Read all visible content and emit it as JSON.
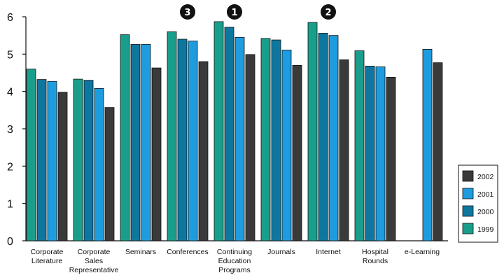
{
  "chart_data": {
    "type": "bar",
    "categories": [
      [
        "Corporate",
        "Literature"
      ],
      [
        "Corporate",
        "Sales",
        "Representative"
      ],
      [
        "Seminars"
      ],
      [
        "Conferences"
      ],
      [
        "Continuing",
        "Education",
        "Programs"
      ],
      [
        "Journals"
      ],
      [
        "Internet"
      ],
      [
        "Hospital",
        "Rounds"
      ],
      [
        "e-Learning"
      ]
    ],
    "series": [
      {
        "name": "1999",
        "color": "#1a9e8c",
        "values": [
          4.6,
          4.33,
          5.52,
          5.6,
          5.87,
          5.42,
          5.85,
          5.09,
          null
        ]
      },
      {
        "name": "2000",
        "color": "#0e77a0",
        "values": [
          4.32,
          4.3,
          5.26,
          5.4,
          5.72,
          5.38,
          5.56,
          4.68,
          null
        ]
      },
      {
        "name": "2001",
        "color": "#1e9ce0",
        "values": [
          4.27,
          4.08,
          5.26,
          5.35,
          5.45,
          5.11,
          5.5,
          4.66,
          5.13
        ]
      },
      {
        "name": "2002",
        "color": "#3a3a3a",
        "values": [
          3.98,
          3.57,
          4.63,
          4.8,
          4.99,
          4.7,
          4.85,
          4.38,
          4.77
        ]
      }
    ],
    "ylim": [
      0,
      6
    ],
    "yticks": [
      "0",
      "1",
      "2",
      "3",
      "4",
      "5",
      "6"
    ],
    "legend_order": [
      "2002",
      "2001",
      "2000",
      "1999"
    ],
    "legend_position": "right",
    "grid": false,
    "annotations": [
      {
        "label": "3",
        "category_index": 3
      },
      {
        "label": "1",
        "category_index": 4
      },
      {
        "label": "2",
        "category_index": 6
      }
    ]
  }
}
